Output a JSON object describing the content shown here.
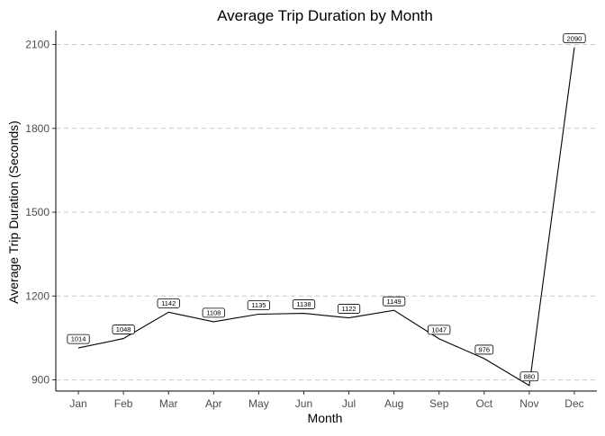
{
  "chart_data": {
    "type": "line",
    "title": "Average Trip Duration by Month",
    "xlabel": "Month",
    "ylabel": "Average Trip Duration (Seconds)",
    "categories": [
      "Jan",
      "Feb",
      "Mar",
      "Apr",
      "May",
      "Jun",
      "Jul",
      "Aug",
      "Sep",
      "Oct",
      "Nov",
      "Dec"
    ],
    "values": [
      1014,
      1048,
      1142,
      1108,
      1135,
      1138,
      1122,
      1149,
      1047,
      976,
      880,
      2090
    ],
    "data_labels": [
      "1014",
      "1048",
      "1142",
      "1108",
      "1135",
      "1138",
      "1122",
      "1149",
      "1047",
      "976",
      "880",
      "2090"
    ],
    "ylim": [
      860,
      2150
    ],
    "yticks": [
      900,
      1200,
      1500,
      1800,
      2100
    ],
    "ytick_labels": [
      "900",
      "1200",
      "1500",
      "1800",
      "2100"
    ],
    "grid": "horizontal-dashed",
    "legend": "none",
    "colors": {
      "line": "#000000",
      "grid": "#c8c8c8",
      "background": "#ffffff"
    }
  }
}
